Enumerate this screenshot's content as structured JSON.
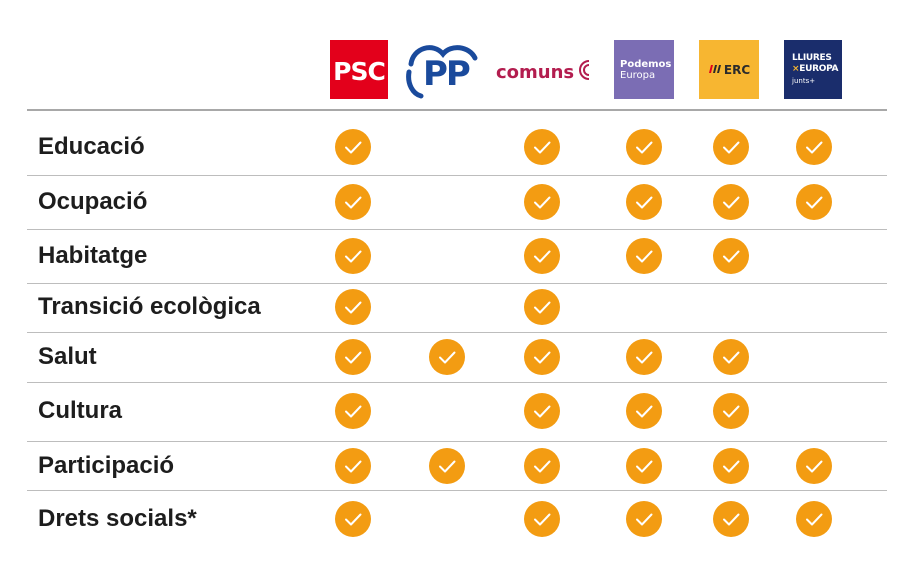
{
  "parties": [
    {
      "id": "psc",
      "label": "PSC"
    },
    {
      "id": "pp",
      "label": "PP"
    },
    {
      "id": "comuns",
      "label": "comuns"
    },
    {
      "id": "podemos",
      "label_1": "Podemos",
      "label_2": "Europa"
    },
    {
      "id": "erc",
      "label": "ERC"
    },
    {
      "id": "lliures",
      "label_1": "LLIURES",
      "label_x": "×",
      "label_2": "EUROPA",
      "label_3": "junts+"
    }
  ],
  "rows": [
    {
      "label": "Educació",
      "checks": [
        true,
        false,
        true,
        true,
        true,
        true
      ]
    },
    {
      "label": "Ocupació",
      "checks": [
        true,
        false,
        true,
        true,
        true,
        true
      ]
    },
    {
      "label": "Habitatge",
      "checks": [
        true,
        false,
        true,
        true,
        true,
        false
      ]
    },
    {
      "label": "Transició ecològica",
      "checks": [
        true,
        false,
        true,
        false,
        false,
        false
      ]
    },
    {
      "label": "Salut",
      "checks": [
        true,
        true,
        true,
        true,
        true,
        false
      ]
    },
    {
      "label": "Cultura",
      "checks": [
        true,
        false,
        true,
        true,
        true,
        false
      ]
    },
    {
      "label": "Participació",
      "checks": [
        true,
        true,
        true,
        true,
        true,
        true
      ]
    },
    {
      "label": "Drets socials*",
      "checks": [
        true,
        false,
        true,
        true,
        true,
        true
      ]
    }
  ],
  "colors": {
    "check": "#f39c12",
    "psc": "#e3001b",
    "pp": "#1a4a9c",
    "comuns": "#b31d4f",
    "podemos": "#7b6db4",
    "erc": "#f7b631",
    "lliures": "#1a2d6c"
  },
  "icons": {
    "check": "check-circle-icon"
  }
}
